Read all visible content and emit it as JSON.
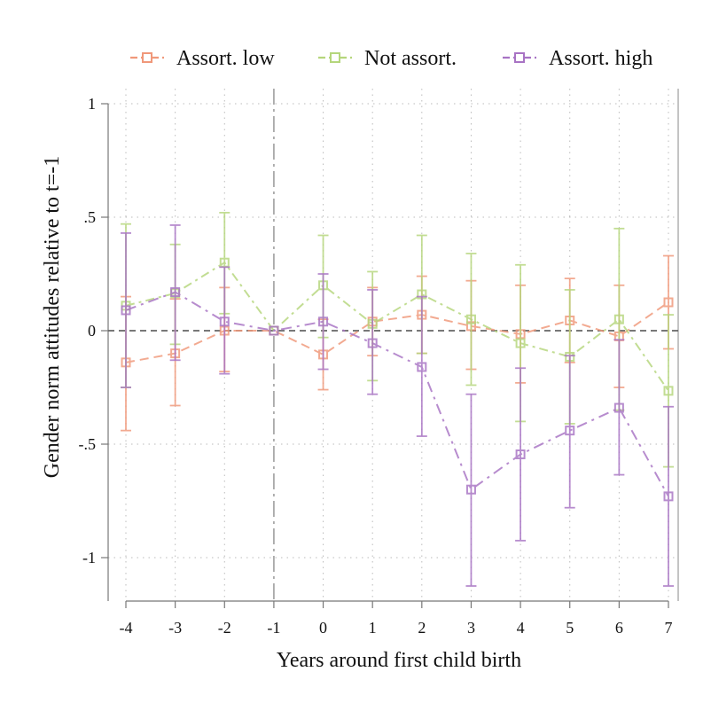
{
  "chart_data": {
    "type": "line",
    "title": "",
    "xlabel": "Years around first child birth",
    "ylabel": "Gender norm attitudes relative to t=-1",
    "x": [
      -4,
      -3,
      -2,
      -1,
      0,
      1,
      2,
      3,
      4,
      5,
      6,
      7
    ],
    "x_tick_labels": [
      "-4",
      "-3",
      "-2",
      "-1",
      "0",
      "1",
      "2",
      "3",
      "4",
      "5",
      "6",
      "7"
    ],
    "xlim": [
      -4,
      7
    ],
    "ylim": [
      -1.2,
      1
    ],
    "y_ticks": [
      1,
      0.5,
      0,
      -0.5,
      -1
    ],
    "y_tick_labels": [
      "1",
      ".5",
      "0",
      "-.5",
      "-1"
    ],
    "reference_lines": {
      "y_zero": 0,
      "x_event": -1
    },
    "grid": true,
    "legend_position": "top",
    "series": [
      {
        "name": "Assort. low",
        "color": "#f0987a",
        "values": [
          -0.14,
          -0.1,
          0.0,
          0.0,
          -0.105,
          0.04,
          0.07,
          0.02,
          -0.015,
          0.045,
          -0.025,
          0.125
        ],
        "ci_lower": [
          -0.44,
          -0.33,
          -0.18,
          0.0,
          -0.26,
          -0.11,
          -0.1,
          -0.17,
          -0.23,
          -0.14,
          -0.25,
          -0.08
        ],
        "ci_upper": [
          0.15,
          0.14,
          0.19,
          0.0,
          0.05,
          0.19,
          0.24,
          0.22,
          0.2,
          0.23,
          0.2,
          0.33
        ]
      },
      {
        "name": "Not assort.",
        "color": "#b5d67c",
        "values": [
          0.11,
          0.165,
          0.3,
          0.0,
          0.2,
          0.03,
          0.16,
          0.05,
          -0.055,
          -0.115,
          0.05,
          -0.265
        ],
        "ci_lower": [
          -0.25,
          -0.06,
          0.075,
          0.0,
          -0.03,
          -0.22,
          -0.1,
          -0.24,
          -0.4,
          -0.41,
          -0.35,
          -0.6
        ],
        "ci_upper": [
          0.47,
          0.38,
          0.52,
          0.0,
          0.42,
          0.26,
          0.42,
          0.34,
          0.29,
          0.18,
          0.45,
          0.07
        ]
      },
      {
        "name": "Assort. high",
        "color": "#a873c4",
        "values": [
          0.09,
          0.17,
          0.04,
          0.0,
          0.04,
          -0.055,
          -0.16,
          -0.7,
          -0.545,
          -0.44,
          -0.34,
          -0.73
        ],
        "ci_lower": [
          -0.25,
          -0.13,
          -0.19,
          0.0,
          -0.17,
          -0.28,
          -0.465,
          -1.125,
          -0.925,
          -0.78,
          -0.635,
          -1.125
        ],
        "ci_upper": [
          0.43,
          0.465,
          0.28,
          0.0,
          0.25,
          0.18,
          0.15,
          -0.28,
          -0.165,
          -0.11,
          -0.04,
          -0.335
        ]
      }
    ]
  }
}
